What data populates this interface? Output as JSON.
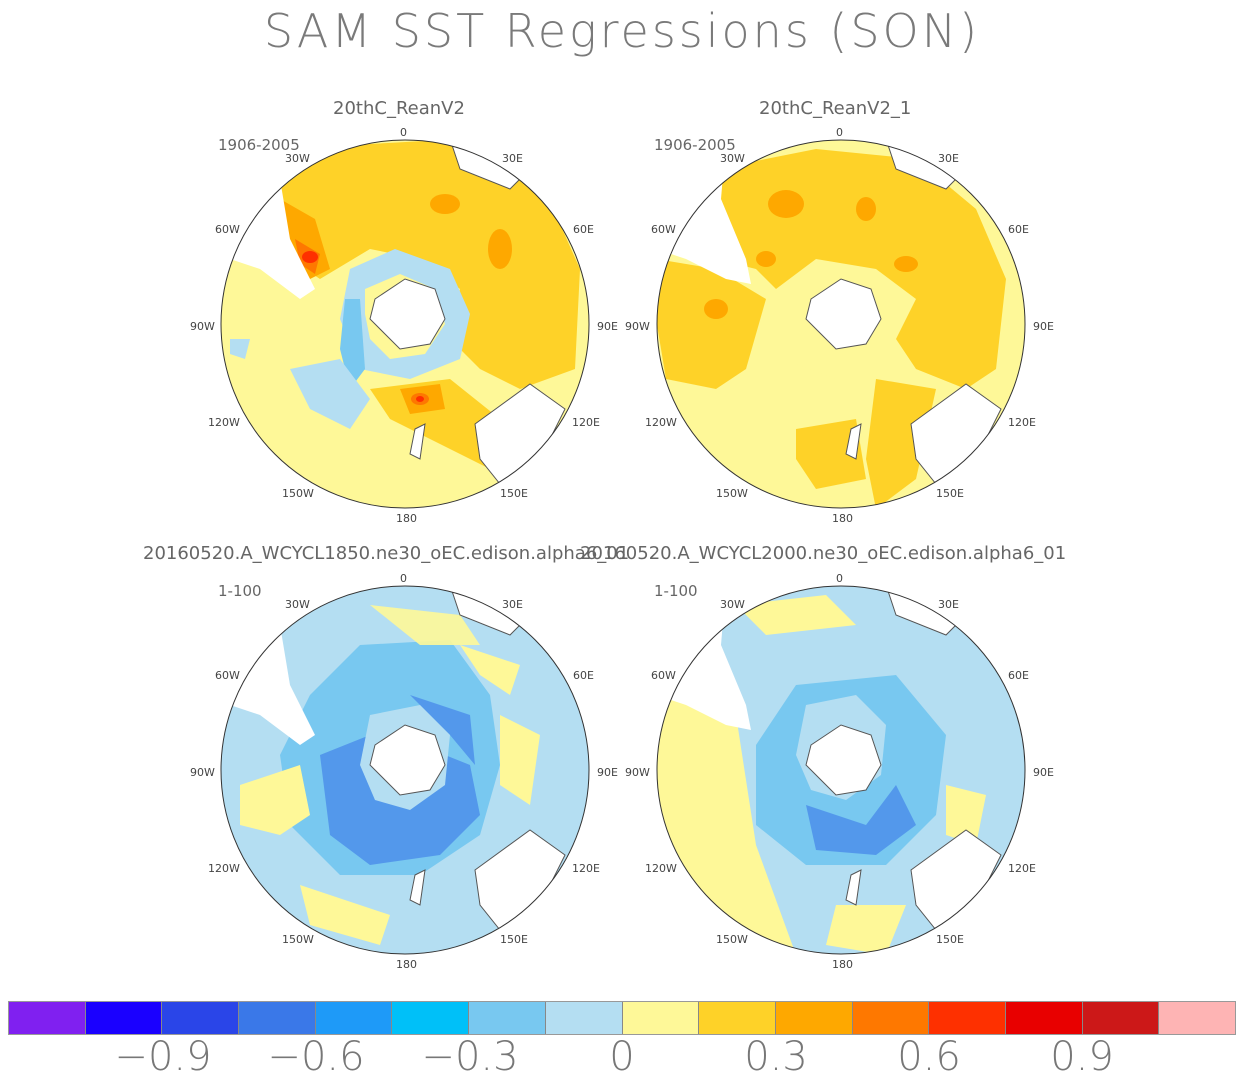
{
  "title": "SAM SST Regressions (SON)",
  "panels": [
    {
      "label": "20thC_ReanV2",
      "years": "1906-2005"
    },
    {
      "label": "20thC_ReanV2_1",
      "years": "1906-2005"
    },
    {
      "label": "20160520.A_WCYCL1850.ne30_oEC.edison.alpha6_01",
      "years": "1-100"
    },
    {
      "label": "20160520.A_WCYCL2000.ne30_oEC.edison.alpha6_01",
      "years": "1-100"
    }
  ],
  "longitude_labels": {
    "top": "0",
    "t30e": "30E",
    "t60e": "60E",
    "t90e": "90E",
    "t120e": "120E",
    "t150e": "150E",
    "bottom": "180",
    "t150w": "150W",
    "t120w": "120W",
    "t90w": "90W",
    "t60w": "60W",
    "t30w": "30W"
  },
  "colorbar": {
    "colors": [
      "#8020f0",
      "#1a00ff",
      "#2a45e8",
      "#3a78e8",
      "#1e9af8",
      "#00c0f8",
      "#78c8f0",
      "#b4def2",
      "#fef898",
      "#fed228",
      "#fea800",
      "#fe7800",
      "#fe3000",
      "#e80000",
      "#cc1818",
      "#feb4b4"
    ],
    "tick_labels": [
      "−0.9",
      "−0.6",
      "−0.3",
      "0",
      "0.3",
      "0.6",
      "0.9"
    ]
  }
}
